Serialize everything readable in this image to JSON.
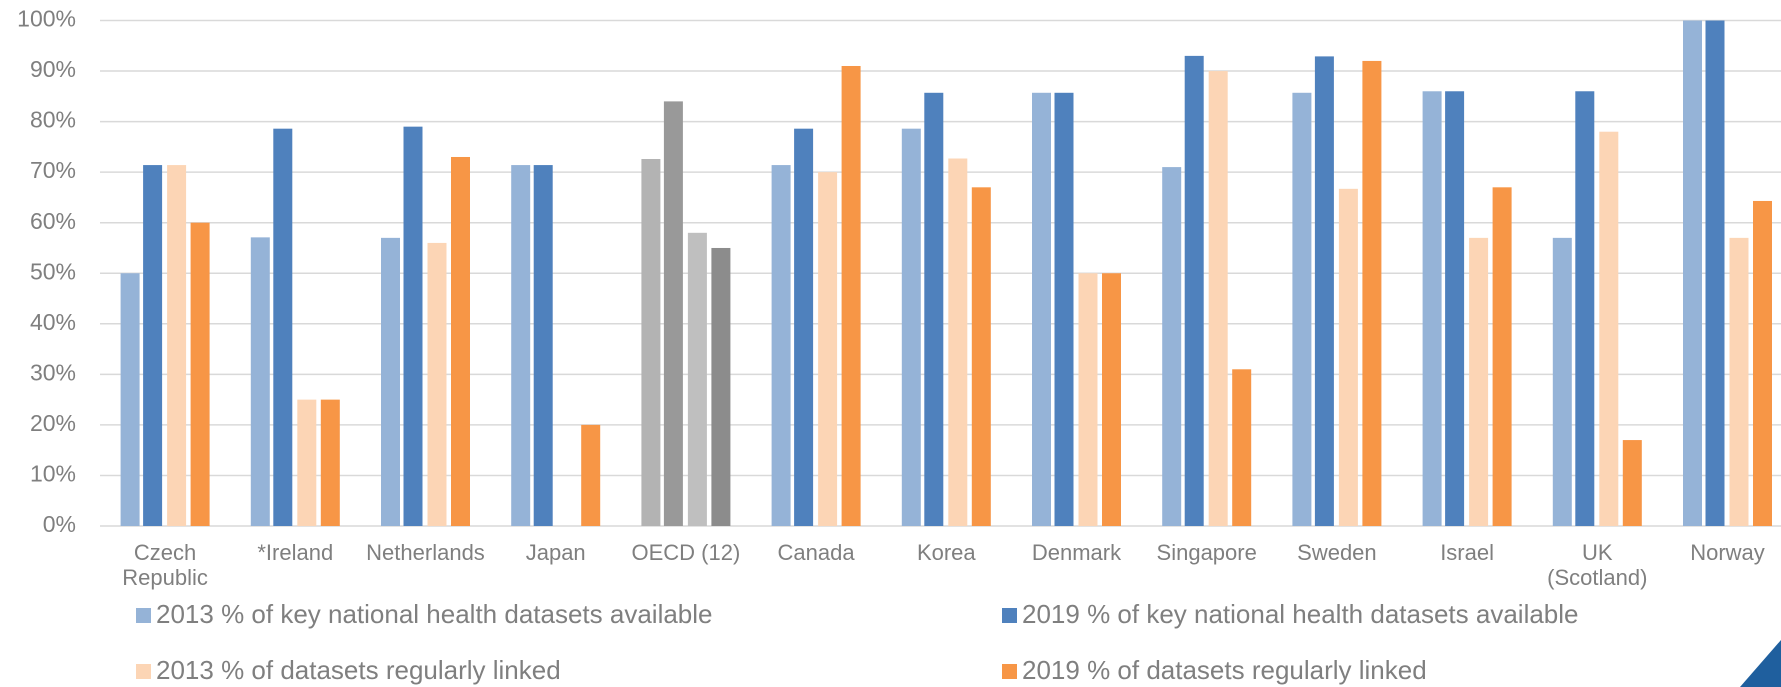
{
  "chart_data": {
    "type": "bar",
    "categories": [
      [
        "Czech",
        "Republic"
      ],
      [
        "*Ireland"
      ],
      [
        "Netherlands"
      ],
      [
        "Japan"
      ],
      [
        "OECD (12)"
      ],
      [
        "Canada"
      ],
      [
        "Korea"
      ],
      [
        "Denmark"
      ],
      [
        "Singapore"
      ],
      [
        "Sweden"
      ],
      [
        "Israel"
      ],
      [
        "UK",
        "(Scotland)"
      ],
      [
        "Norway"
      ]
    ],
    "highlight_category": "OECD (12)",
    "series": [
      {
        "name": "2013 % of key national health datasets available",
        "color": "#95b3d7",
        "highlight_color": "#b3b3b3",
        "values": [
          50,
          57.1,
          57,
          71.4,
          72.6,
          71.4,
          78.6,
          85.7,
          71,
          85.7,
          86,
          57,
          100
        ]
      },
      {
        "name": "2019 % of key national health datasets available",
        "color": "#4f81bd",
        "highlight_color": "#999999",
        "values": [
          71.4,
          78.6,
          79,
          71.4,
          84,
          78.6,
          85.7,
          85.7,
          93,
          92.9,
          86,
          86,
          100
        ]
      },
      {
        "name": "2013 % of datasets regularly linked",
        "color": "#fcd5b5",
        "highlight_color": "#bfbfbf",
        "values": [
          71.4,
          25,
          56,
          null,
          58,
          70,
          72.7,
          50,
          90,
          66.7,
          57,
          78,
          57
        ]
      },
      {
        "name": "2019 % of datasets regularly linked",
        "color": "#f79646",
        "highlight_color": "#8c8c8c",
        "values": [
          60,
          25,
          73,
          20,
          55,
          91,
          67,
          50,
          31,
          92,
          67,
          17,
          64.3
        ]
      }
    ],
    "ylim": [
      0,
      100
    ],
    "yticks": [
      {
        "value": 0,
        "label": "0%"
      },
      {
        "value": 10,
        "label": "10%"
      },
      {
        "value": 20,
        "label": "20%"
      },
      {
        "value": 30,
        "label": "30%"
      },
      {
        "value": 40,
        "label": "40%"
      },
      {
        "value": 50,
        "label": "50%"
      },
      {
        "value": 60,
        "label": "60%"
      },
      {
        "value": 70,
        "label": "70%"
      },
      {
        "value": 80,
        "label": "80%"
      },
      {
        "value": 90,
        "label": "90%"
      },
      {
        "value": 100,
        "label": "100%"
      }
    ],
    "grid": true,
    "legend": "bottom"
  }
}
